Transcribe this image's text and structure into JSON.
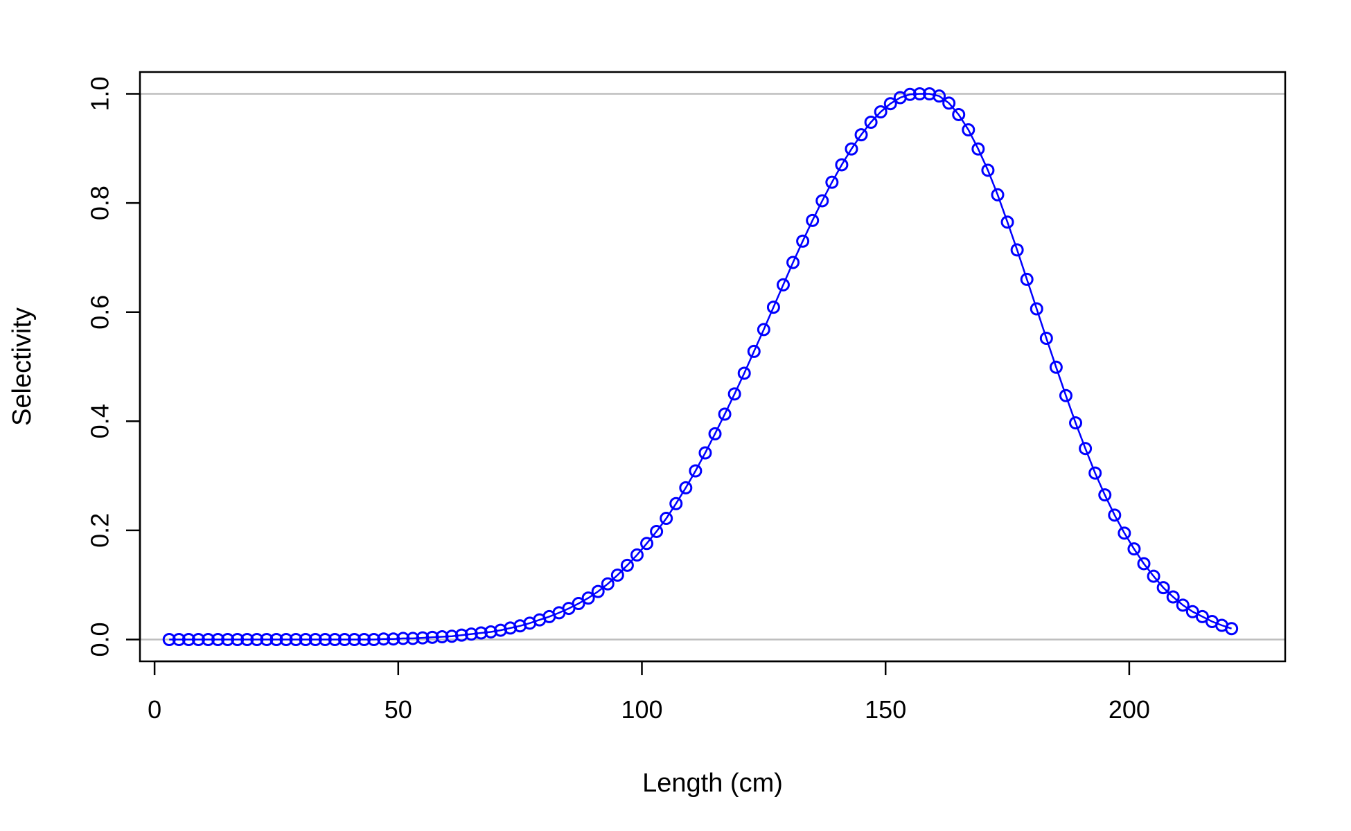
{
  "chart_data": {
    "type": "line",
    "title": "",
    "xlabel": "Length (cm)",
    "ylabel": "Selectivity",
    "xlim": [
      -3,
      232
    ],
    "ylim": [
      -0.04,
      1.04
    ],
    "x_ticks": [
      0,
      50,
      100,
      150,
      200
    ],
    "y_ticks": [
      0.0,
      0.2,
      0.4,
      0.6,
      0.8,
      1.0
    ],
    "x_tick_labels": [
      "0",
      "50",
      "100",
      "150",
      "200"
    ],
    "y_tick_labels": [
      "0.0",
      "0.2",
      "0.4",
      "0.6",
      "0.8",
      "1.0"
    ],
    "reference_lines": [
      0,
      1
    ],
    "reference_line_color": "#bebebe",
    "grid": false,
    "legend": "none",
    "series": [
      {
        "color": "#0000ff",
        "marker": "open-circle",
        "x": [
          3,
          5,
          7,
          9,
          11,
          13,
          15,
          17,
          19,
          21,
          23,
          25,
          27,
          29,
          31,
          33,
          35,
          37,
          39,
          41,
          43,
          45,
          47,
          49,
          51,
          53,
          55,
          57,
          59,
          61,
          63,
          65,
          67,
          69,
          71,
          73,
          75,
          77,
          79,
          81,
          83,
          85,
          87,
          89,
          91,
          93,
          95,
          97,
          99,
          101,
          103,
          105,
          107,
          109,
          111,
          113,
          115,
          117,
          119,
          121,
          123,
          125,
          127,
          129,
          131,
          133,
          135,
          137,
          139,
          141,
          143,
          145,
          147,
          149,
          151,
          153,
          155,
          157,
          159,
          161,
          163,
          165,
          167,
          169,
          171,
          173,
          175,
          177,
          179,
          181,
          183,
          185,
          187,
          189,
          191,
          193,
          195,
          197,
          199,
          201,
          203,
          205,
          207,
          209,
          211,
          213,
          215,
          217,
          219,
          221
        ],
        "y": [
          0.0,
          0.0,
          0.0,
          0.0,
          0.0,
          0.0,
          0.0,
          0.0,
          0.0,
          0.0,
          0.0,
          0.0,
          0.0,
          0.0,
          0.0,
          0.0,
          0.0,
          0.0,
          0.0,
          0.0,
          0.0,
          0.0,
          0.001,
          0.001,
          0.002,
          0.002,
          0.003,
          0.004,
          0.005,
          0.006,
          0.008,
          0.01,
          0.012,
          0.014,
          0.017,
          0.021,
          0.025,
          0.03,
          0.036,
          0.042,
          0.049,
          0.057,
          0.066,
          0.076,
          0.088,
          0.102,
          0.118,
          0.136,
          0.155,
          0.176,
          0.198,
          0.222,
          0.249,
          0.278,
          0.309,
          0.342,
          0.377,
          0.413,
          0.45,
          0.488,
          0.528,
          0.568,
          0.609,
          0.65,
          0.691,
          0.73,
          0.768,
          0.804,
          0.838,
          0.87,
          0.899,
          0.925,
          0.948,
          0.967,
          0.982,
          0.993,
          0.999,
          1.0,
          1.0,
          0.996,
          0.983,
          0.962,
          0.934,
          0.899,
          0.86,
          0.815,
          0.765,
          0.714,
          0.66,
          0.606,
          0.552,
          0.499,
          0.447,
          0.397,
          0.35,
          0.305,
          0.265,
          0.228,
          0.195,
          0.166,
          0.139,
          0.116,
          0.095,
          0.078,
          0.063,
          0.051,
          0.042,
          0.033,
          0.026,
          0.02
        ]
      }
    ]
  }
}
